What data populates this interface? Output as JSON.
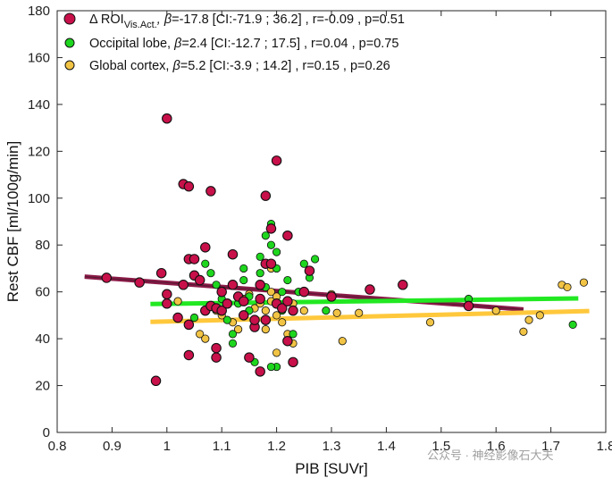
{
  "chart_data": {
    "type": "scatter",
    "xlabel": "PIB [SUVr]",
    "ylabel": "Rest CBF [ml/100g/min]",
    "xlim": [
      0.8,
      1.8
    ],
    "ylim": [
      0,
      180
    ],
    "xticks": [
      "0.8",
      "0.9",
      "1",
      "1.1",
      "1.2",
      "1.3",
      "1.4",
      "1.5",
      "1.6",
      "1.7",
      "1.8"
    ],
    "yticks": [
      "0",
      "20",
      "40",
      "60",
      "80",
      "100",
      "120",
      "140",
      "160",
      "180"
    ],
    "grid": false,
    "legend_position": "top-left",
    "series": [
      {
        "name_main": "Δ ROI",
        "name_sub": "Vis.Act.",
        "stats": "=-17.8 [CI:-71.9 ; 36.2] , r=-0.09  , p=0.51",
        "color": "#c8104a",
        "line_color": "#8b1a48",
        "fit": {
          "x": [
            0.85,
            1.65
          ],
          "y": [
            66.5,
            52.5
          ]
        },
        "points": [
          [
            0.89,
            66
          ],
          [
            0.95,
            64
          ],
          [
            0.98,
            22
          ],
          [
            0.99,
            68
          ],
          [
            1.0,
            59
          ],
          [
            1.0,
            134
          ],
          [
            1.0,
            55
          ],
          [
            1.02,
            49
          ],
          [
            1.03,
            63
          ],
          [
            1.03,
            106
          ],
          [
            1.04,
            105
          ],
          [
            1.04,
            33
          ],
          [
            1.04,
            46
          ],
          [
            1.04,
            74
          ],
          [
            1.05,
            67
          ],
          [
            1.05,
            74
          ],
          [
            1.06,
            65
          ],
          [
            1.07,
            79
          ],
          [
            1.08,
            103
          ],
          [
            1.07,
            52
          ],
          [
            1.08,
            54
          ],
          [
            1.09,
            53
          ],
          [
            1.09,
            32
          ],
          [
            1.09,
            36
          ],
          [
            1.1,
            60
          ],
          [
            1.1,
            52
          ],
          [
            1.11,
            55
          ],
          [
            1.12,
            76
          ],
          [
            1.12,
            63
          ],
          [
            1.13,
            58
          ],
          [
            1.14,
            56
          ],
          [
            1.14,
            50
          ],
          [
            1.15,
            32
          ],
          [
            1.16,
            45
          ],
          [
            1.16,
            48
          ],
          [
            1.17,
            26
          ],
          [
            1.17,
            57
          ],
          [
            1.17,
            63
          ],
          [
            1.18,
            101
          ],
          [
            1.18,
            72
          ],
          [
            1.19,
            72
          ],
          [
            1.19,
            87
          ],
          [
            1.18,
            48
          ],
          [
            1.2,
            116
          ],
          [
            1.2,
            55
          ],
          [
            1.21,
            53
          ],
          [
            1.22,
            84
          ],
          [
            1.22,
            56
          ],
          [
            1.22,
            39
          ],
          [
            1.23,
            30
          ],
          [
            1.23,
            52
          ],
          [
            1.25,
            60
          ],
          [
            1.26,
            69
          ],
          [
            1.3,
            58
          ],
          [
            1.37,
            61
          ],
          [
            1.43,
            63
          ],
          [
            1.55,
            54
          ]
        ]
      },
      {
        "name_main": "Occipital lobe,",
        "stats": "=2.4 [CI:-12.7 ; 17.5] , r=0.04  , p=0.75",
        "color": "#1ed61e",
        "line_color": "#22e822",
        "fit": {
          "x": [
            0.97,
            1.75
          ],
          "y": [
            54.8,
            57.2
          ]
        },
        "points": [
          [
            1.05,
            49
          ],
          [
            1.07,
            72
          ],
          [
            1.08,
            68
          ],
          [
            1.09,
            63
          ],
          [
            1.1,
            57
          ],
          [
            1.11,
            48
          ],
          [
            1.12,
            42
          ],
          [
            1.12,
            38
          ],
          [
            1.13,
            55
          ],
          [
            1.14,
            65
          ],
          [
            1.14,
            70
          ],
          [
            1.15,
            58
          ],
          [
            1.15,
            52
          ],
          [
            1.16,
            48
          ],
          [
            1.16,
            30
          ],
          [
            1.17,
            75
          ],
          [
            1.17,
            68
          ],
          [
            1.18,
            62
          ],
          [
            1.18,
            84
          ],
          [
            1.19,
            89
          ],
          [
            1.19,
            80
          ],
          [
            1.2,
            77
          ],
          [
            1.2,
            70
          ],
          [
            1.21,
            60
          ],
          [
            1.21,
            52
          ],
          [
            1.22,
            65
          ],
          [
            1.23,
            42
          ],
          [
            1.24,
            60
          ],
          [
            1.25,
            72
          ],
          [
            1.26,
            66
          ],
          [
            1.27,
            74
          ],
          [
            1.2,
            28
          ],
          [
            1.19,
            28
          ],
          [
            1.29,
            52
          ],
          [
            1.55,
            57
          ],
          [
            1.74,
            46
          ]
        ]
      },
      {
        "name_main": "Global cortex,",
        "stats": "=5.2 [CI:-3.9 ; 14.2] , r=0.15  , p=0.26",
        "color": "#f2c445",
        "line_color": "#ffc83c",
        "fit": {
          "x": [
            0.97,
            1.77
          ],
          "y": [
            47.2,
            51.8
          ]
        },
        "points": [
          [
            1.02,
            56
          ],
          [
            1.06,
            42
          ],
          [
            1.07,
            40
          ],
          [
            1.09,
            52
          ],
          [
            1.1,
            50
          ],
          [
            1.11,
            55
          ],
          [
            1.12,
            47
          ],
          [
            1.13,
            44
          ],
          [
            1.14,
            57
          ],
          [
            1.15,
            59
          ],
          [
            1.16,
            53
          ],
          [
            1.16,
            48
          ],
          [
            1.17,
            55
          ],
          [
            1.18,
            52
          ],
          [
            1.18,
            44
          ],
          [
            1.19,
            60
          ],
          [
            1.19,
            56
          ],
          [
            1.2,
            58
          ],
          [
            1.2,
            50
          ],
          [
            1.21,
            53
          ],
          [
            1.21,
            47
          ],
          [
            1.22,
            42
          ],
          [
            1.23,
            38
          ],
          [
            1.23,
            55
          ],
          [
            1.24,
            60
          ],
          [
            1.25,
            52
          ],
          [
            1.19,
            70
          ],
          [
            1.2,
            34
          ],
          [
            1.3,
            59
          ],
          [
            1.31,
            51
          ],
          [
            1.32,
            39
          ],
          [
            1.35,
            51
          ],
          [
            1.48,
            47
          ],
          [
            1.6,
            52
          ],
          [
            1.65,
            43
          ],
          [
            1.66,
            48
          ],
          [
            1.72,
            63
          ],
          [
            1.73,
            62
          ],
          [
            1.76,
            64
          ],
          [
            1.68,
            50
          ]
        ]
      }
    ]
  },
  "legend": {
    "beta_symbol": "β"
  },
  "watermark": "公众号 · 神经影像石大夫"
}
